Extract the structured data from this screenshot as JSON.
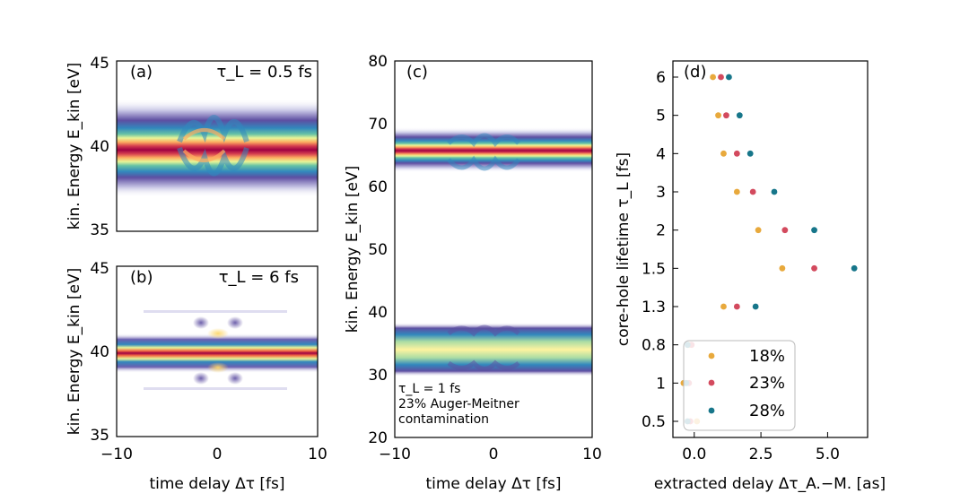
{
  "figure": {
    "panels": [
      {
        "id": "a",
        "label": "(a)",
        "annotation": "τ_L = 0.5 fs",
        "ylabel": "kin. Energy E_kin [eV]",
        "ylim": [
          35,
          45
        ],
        "xlim": [
          -10,
          10
        ],
        "yticks": [
          "35",
          "40",
          "45"
        ],
        "xticks": []
      },
      {
        "id": "b",
        "label": "(b)",
        "annotation": "τ_L = 6 fs",
        "ylabel": "kin. Energy E_kin [eV]",
        "ylim": [
          35,
          45
        ],
        "xlim": [
          -10,
          10
        ],
        "yticks": [
          "35",
          "40",
          "45"
        ],
        "xticks": [
          "−10",
          "0",
          "10"
        ],
        "xlabel": "time delay Δτ [fs]"
      },
      {
        "id": "c",
        "label": "(c)",
        "annotation_lines": [
          "τ_L = 1 fs",
          "23% Auger-Meitner",
          "contamination"
        ],
        "ylabel": "kin. Energy E_kin [eV]",
        "ylim": [
          20,
          80
        ],
        "xlim": [
          -10,
          10
        ],
        "yticks": [
          "20",
          "30",
          "40",
          "50",
          "60",
          "70",
          "80"
        ],
        "xticks": [
          "−10",
          "0",
          "10"
        ],
        "xlabel": "time delay Δτ [fs]"
      }
    ]
  },
  "chart_data": {
    "type": "scatter",
    "label": "(d)",
    "xlabel": "extracted delay Δτ_A.−M. [as]",
    "ylabel": "core-hole lifetime τ_L [fs]",
    "xlim": [
      -0.8,
      6.5
    ],
    "xticks": [
      "0.0",
      "2.5",
      "5.0"
    ],
    "categories": [
      "0.5",
      "1",
      "0.8",
      "1.3",
      "1.5",
      "2",
      "3",
      "4",
      "5",
      "6"
    ],
    "series": [
      {
        "name": "18%",
        "color": "#e8a93c",
        "values": [
          0.1,
          -0.4,
          -0.2,
          1.1,
          3.3,
          2.4,
          1.6,
          1.1,
          0.9,
          0.7
        ]
      },
      {
        "name": "23%",
        "color": "#d34a5e",
        "values": [
          -0.15,
          -0.2,
          -0.1,
          1.6,
          4.5,
          3.4,
          2.2,
          1.6,
          1.2,
          1.0
        ]
      },
      {
        "name": "28%",
        "color": "#17768a",
        "values": [
          -0.25,
          -0.3,
          -0.25,
          2.3,
          6.0,
          4.5,
          3.0,
          2.1,
          1.7,
          1.3
        ]
      }
    ],
    "legend": {
      "position": "bottom-left",
      "entries": [
        "18%",
        "23%",
        "28%"
      ]
    }
  }
}
